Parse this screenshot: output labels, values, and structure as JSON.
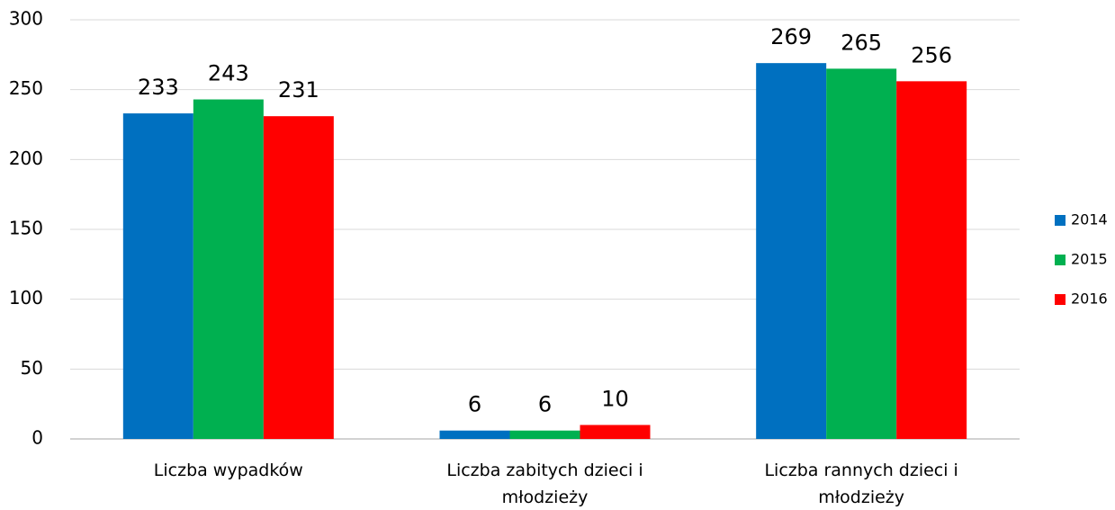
{
  "chart_data": {
    "type": "bar",
    "categories": [
      "Liczba wypadków",
      "Liczba zabitych dzieci i młodzieży",
      "Liczba rannych dzieci i młodzieży"
    ],
    "series": [
      {
        "name": "2014",
        "color": "#0070c0",
        "values": [
          233,
          6,
          269
        ]
      },
      {
        "name": "2015",
        "color": "#00b050",
        "values": [
          243,
          6,
          265
        ]
      },
      {
        "name": "2016",
        "color": "#ff0000",
        "values": [
          231,
          10,
          256
        ]
      }
    ],
    "ylim": [
      0,
      300
    ],
    "yticks": [
      0,
      50,
      100,
      150,
      200,
      250,
      300
    ],
    "grid": true,
    "legend": "right"
  }
}
